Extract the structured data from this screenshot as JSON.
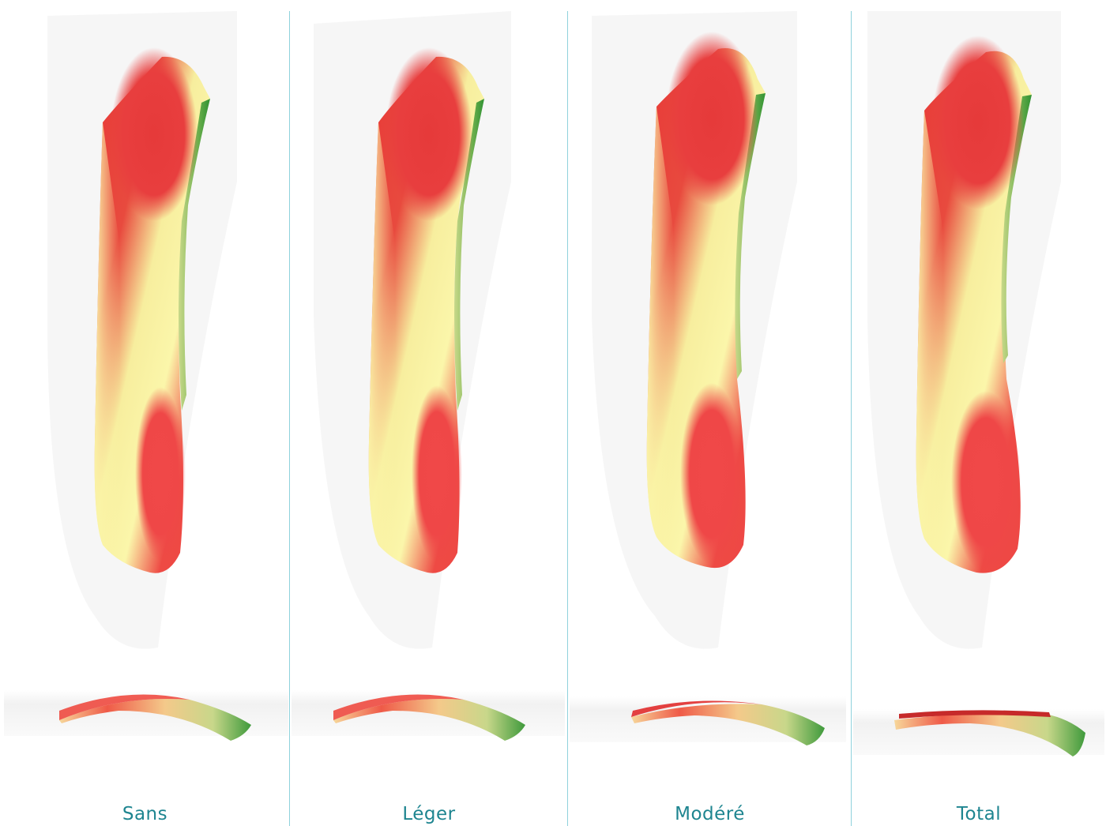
{
  "colors": {
    "label": "#1e8590",
    "separator": "#8fd2dc",
    "red": "#ee3a3a",
    "yellow": "#fbf5a8",
    "green": "#3e9e3a"
  },
  "panels": [
    {
      "label": "Sans"
    },
    {
      "label": "Léger"
    },
    {
      "label": "Modéré"
    },
    {
      "label": "Total"
    }
  ]
}
